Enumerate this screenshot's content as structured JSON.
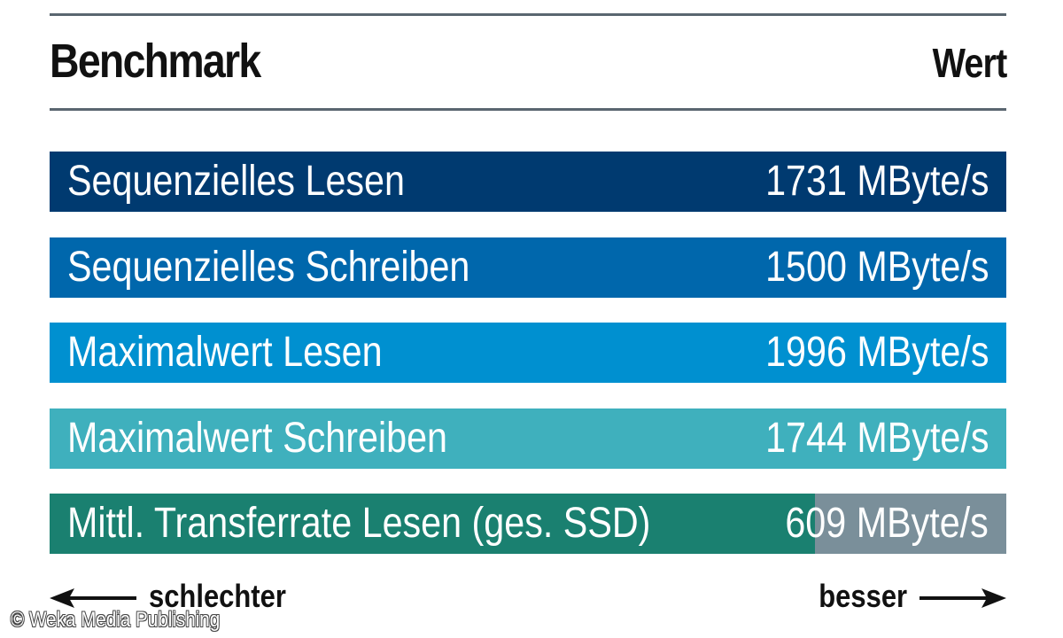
{
  "header": {
    "left": "Benchmark",
    "right": "Wert"
  },
  "chart_data": {
    "type": "bar",
    "orientation": "horizontal",
    "unit": "MByte/s",
    "categories": [
      "Sequenzielles Lesen",
      "Sequenzielles Schreiben",
      "Maximalwert Lesen",
      "Maximalwert Schreiben",
      "Mittl. Transferrate Lesen (ges. SSD)"
    ],
    "values": [
      1731,
      1500,
      1996,
      1744,
      609
    ],
    "value_labels": [
      "1731 MByte/s",
      "1500 MByte/s",
      "1996 MByte/s",
      "1744 MByte/s",
      "609 MByte/s"
    ],
    "fill_fraction": [
      1,
      1,
      1,
      1,
      0.8
    ],
    "colors": [
      "#003a70",
      "#0067ac",
      "#0090d0",
      "#3fb0bd",
      "#1a8070"
    ],
    "track_color": "#7a8f9a"
  },
  "footer": {
    "worse": "schlechter",
    "better": "besser"
  },
  "copyright": "© Weka Media Publishing"
}
